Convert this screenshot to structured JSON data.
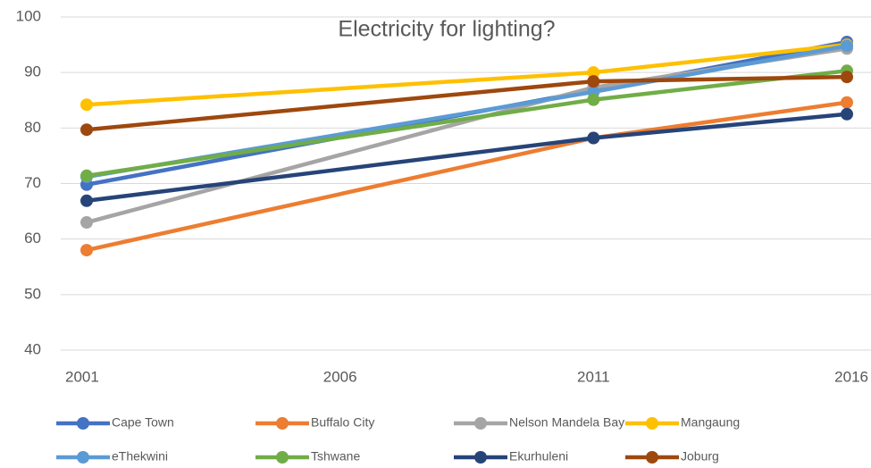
{
  "chart_data": {
    "type": "line",
    "title": "Electricity for lighting?",
    "x": [
      2001,
      2011,
      2016
    ],
    "xlim": [
      2001,
      2016
    ],
    "xticks": [
      2001,
      2006,
      2011,
      2016
    ],
    "ylim": [
      40,
      100
    ],
    "yticks": [
      40,
      50,
      60,
      70,
      80,
      90,
      100
    ],
    "grid": true,
    "legend": "bottom",
    "series": [
      {
        "name": "Cape Town",
        "color": "#4472c4",
        "values": [
          69.8,
          86.8,
          95.5
        ]
      },
      {
        "name": "Buffalo City",
        "color": "#ed7d31",
        "values": [
          58,
          78.2,
          84.6
        ]
      },
      {
        "name": "Nelson Mandela Bay",
        "color": "#a5a5a5",
        "values": [
          63,
          87.3,
          94.3
        ]
      },
      {
        "name": "Mangaung",
        "color": "#ffc000",
        "values": [
          84.2,
          90,
          95
        ]
      },
      {
        "name": "eThekwini",
        "color": "#5b9bd5",
        "values": [
          71.2,
          86.5,
          94.8
        ]
      },
      {
        "name": "Tshwane",
        "color": "#70ad47",
        "values": [
          71.4,
          85.1,
          90.3
        ]
      },
      {
        "name": "Ekurhuleni",
        "color": "#264478",
        "values": [
          66.9,
          78.2,
          82.5
        ]
      },
      {
        "name": "Joburg",
        "color": "#9e480e",
        "values": [
          79.7,
          88.4,
          89.2
        ]
      }
    ]
  }
}
